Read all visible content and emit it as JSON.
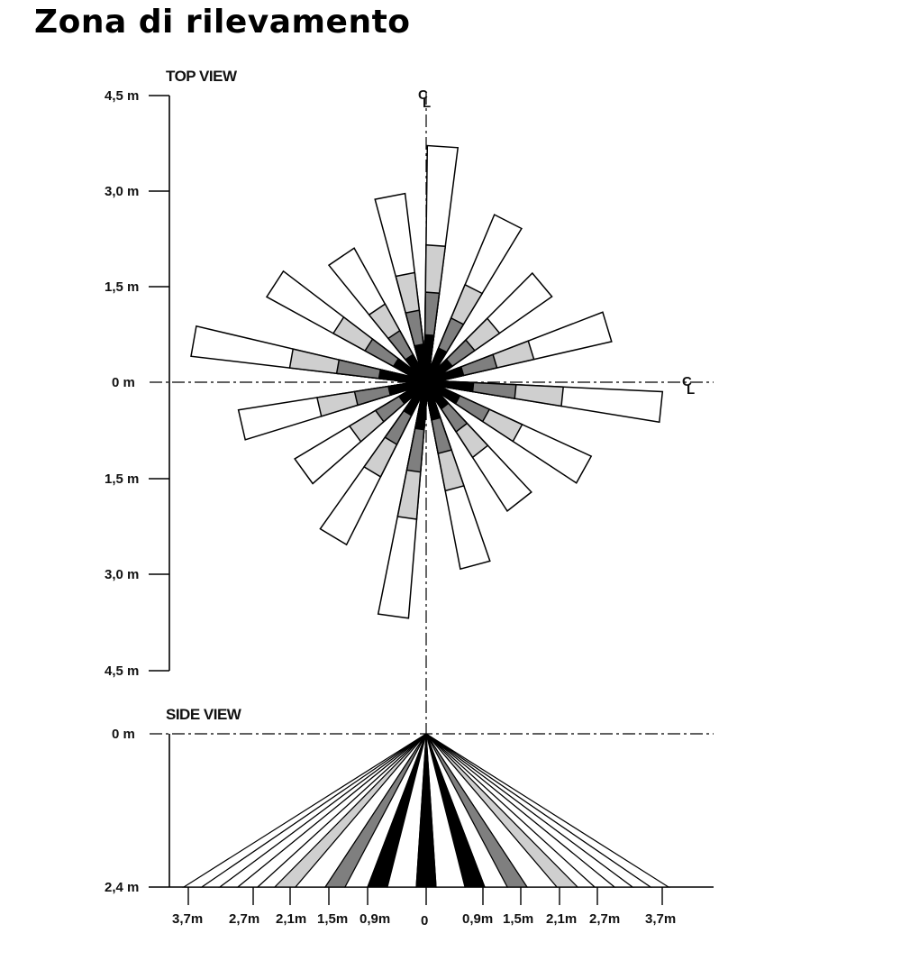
{
  "page": {
    "title": "Zona di rilevamento"
  },
  "top_view": {
    "title": "TOP VIEW",
    "axis_labels": [
      "4,5 m",
      "3,0 m",
      "1,5 m",
      "0 m",
      "1,5 m",
      "3,0 m",
      "4,5 m"
    ],
    "centerline_symbol": "CL",
    "beam_angles_deg": [
      4,
      27,
      50,
      73,
      96,
      119,
      142,
      165,
      188,
      211,
      234,
      257,
      280,
      303,
      326,
      349
    ],
    "zone_shades": {
      "far": "#ffffff",
      "mid": "#cfcfcf",
      "near": "#7f7f7f",
      "core": "#000000"
    }
  },
  "side_view": {
    "title": "SIDE VIEW",
    "axis_labels": [
      "0 m",
      "2,4 m"
    ],
    "distance_labels": [
      "3,7m",
      "2,7m",
      "2,1m",
      "1,5m",
      "0,9m",
      "0",
      "0,9m",
      "1,5m",
      "2,1m",
      "2,7m",
      "3,7m"
    ]
  }
}
